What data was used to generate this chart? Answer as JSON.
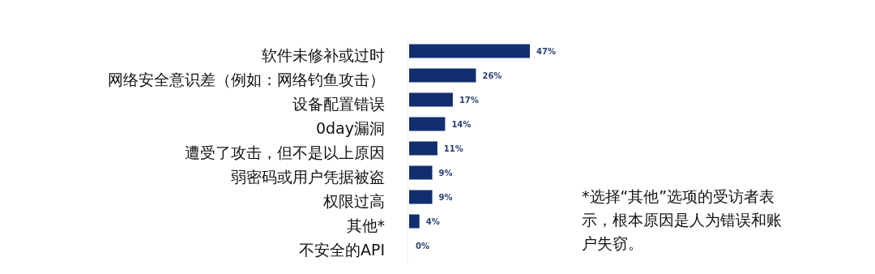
{
  "chart_data": {
    "type": "bar",
    "orientation": "horizontal",
    "categories": [
      "软件未修补或过时",
      "网络安全意识差（例如：网络钓鱼攻击）",
      "设备配置错误",
      "0day漏洞",
      "遭受了攻击，但不是以上原因",
      "弱密码或用户凭据被盗",
      "权限过高",
      "其他*",
      "不安全的API"
    ],
    "values": [
      47,
      26,
      17,
      14,
      11,
      9,
      9,
      4,
      0
    ],
    "value_labels": [
      "47%",
      "26%",
      "17%",
      "14%",
      "11%",
      "9%",
      "9%",
      "4%",
      "0%"
    ],
    "color": "#112f6e",
    "annotations": [
      "*选择“其他”选项的受访者表示，根本原因是人为错误和账户失窃。"
    ]
  }
}
